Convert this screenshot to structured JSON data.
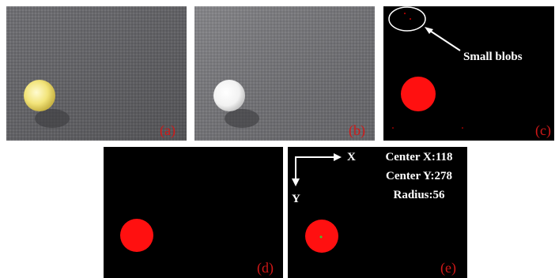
{
  "panels": [
    {
      "label": "(a)"
    },
    {
      "label": "(b)"
    },
    {
      "label": "(c)",
      "annotation": "Small blobs"
    },
    {
      "label": "(d)"
    },
    {
      "label": "(e)",
      "axes": {
        "x": "X",
        "y": "Y"
      },
      "info": [
        "Center X:118",
        "Center Y:278",
        "Radius:56"
      ]
    }
  ]
}
